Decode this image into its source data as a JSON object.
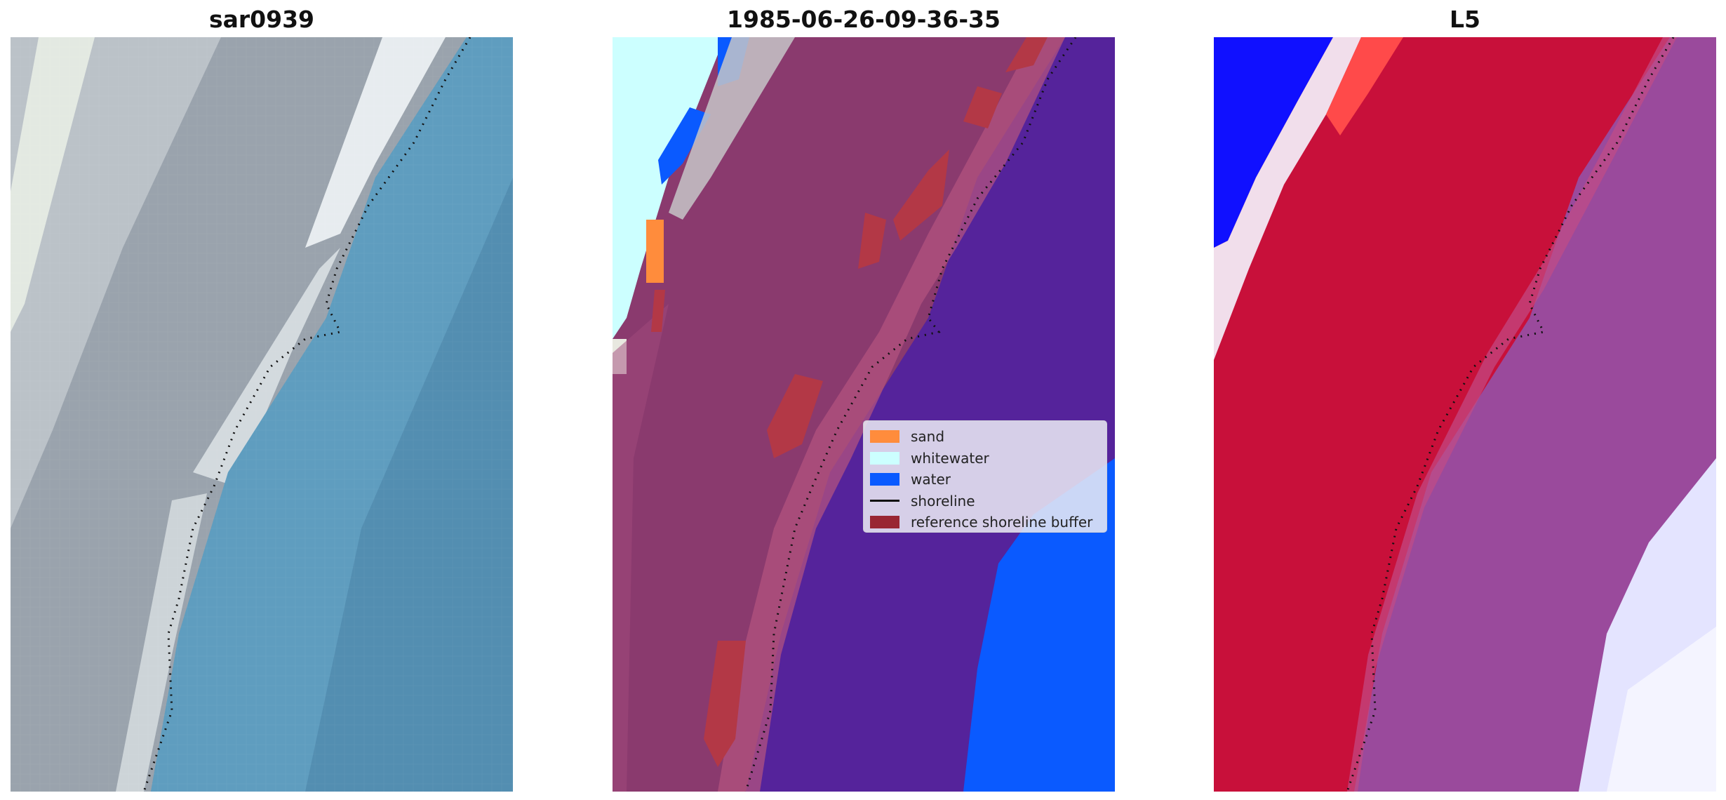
{
  "panels": [
    {
      "title": "sar0939"
    },
    {
      "title": "1985-06-26-09-36-35"
    },
    {
      "title": "L5"
    }
  ],
  "legend": {
    "items": [
      {
        "label": "sand",
        "color": "#ff8c3c",
        "kind": "patch"
      },
      {
        "label": "whitewater",
        "color": "#ccffff",
        "kind": "patch"
      },
      {
        "label": "water",
        "color": "#0a5aff",
        "kind": "patch"
      },
      {
        "label": "shoreline",
        "color": "#111111",
        "kind": "line"
      },
      {
        "label": "reference shoreline buffer",
        "color": "#992633",
        "kind": "patch"
      }
    ]
  },
  "colors": {
    "sand": "#ff8c3c",
    "whitewater": "#ccffff",
    "water": "#0a5aff",
    "shoreline": "#111111",
    "buffer": "#992633",
    "land_overlay": "#8a3a6e",
    "water_overlay": "#55239b",
    "index_positive": "#c8103a",
    "index_mid": "#9a4a9c",
    "index_negative": "#1010ff"
  }
}
